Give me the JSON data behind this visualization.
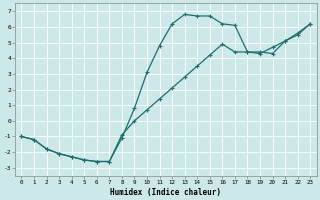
{
  "xlabel": "Humidex (Indice chaleur)",
  "bg_color": "#cde8e8",
  "grid_color": "#b8d8d8",
  "line_color": "#1e6e6e",
  "marker_color": "#1e6e6e",
  "xlim": [
    -0.5,
    23.5
  ],
  "ylim": [
    -3.5,
    7.5
  ],
  "xticks": [
    0,
    1,
    2,
    3,
    4,
    5,
    6,
    7,
    8,
    9,
    10,
    11,
    12,
    13,
    14,
    15,
    16,
    17,
    18,
    19,
    20,
    21,
    22,
    23
  ],
  "yticks": [
    -3,
    -2,
    -1,
    0,
    1,
    2,
    3,
    4,
    5,
    6,
    7
  ],
  "curve1_x": [
    0,
    1,
    2,
    3,
    4,
    5,
    6,
    7,
    8,
    9,
    10,
    11,
    12,
    13,
    14,
    15,
    16,
    17,
    18,
    19,
    20,
    21,
    22,
    23
  ],
  "curve1_y": [
    -1.0,
    -1.2,
    -1.8,
    -2.1,
    -2.3,
    -2.5,
    -2.6,
    -2.6,
    -1.1,
    0.8,
    3.1,
    4.8,
    6.2,
    6.8,
    6.7,
    6.7,
    6.2,
    6.1,
    4.4,
    4.4,
    4.3,
    5.1,
    5.5,
    6.2
  ],
  "curve2_x": [
    0,
    1,
    2,
    3,
    4,
    5,
    6,
    7,
    8,
    9,
    10,
    11,
    12,
    13,
    14,
    15,
    16,
    17,
    18,
    19,
    20,
    21,
    22,
    23
  ],
  "curve2_y": [
    -1.0,
    -1.2,
    -1.8,
    -2.1,
    -2.3,
    -2.5,
    -2.6,
    -2.6,
    -0.9,
    0.0,
    0.7,
    1.4,
    2.1,
    2.8,
    3.5,
    4.2,
    4.9,
    4.4,
    4.4,
    4.3,
    4.7,
    5.1,
    5.6,
    6.2
  ]
}
